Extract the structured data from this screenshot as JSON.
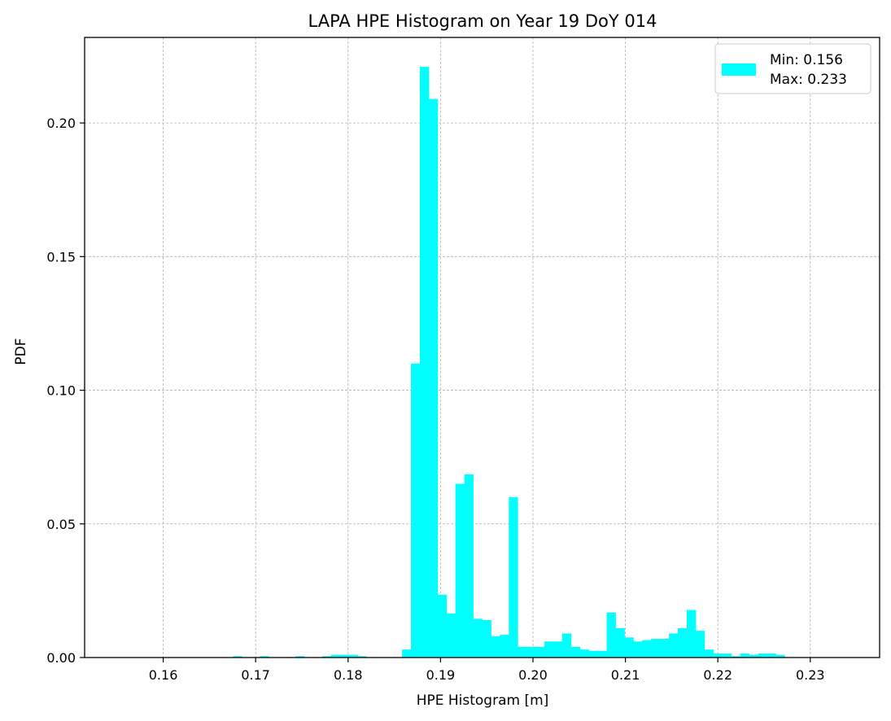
{
  "chart_data": {
    "type": "bar",
    "title": "LAPA HPE Histogram on Year 19 DoY 014",
    "xlabel": "HPE Histogram [m]",
    "ylabel": "PDF",
    "xlim": [
      0.1515,
      0.2375
    ],
    "ylim": [
      0,
      0.232
    ],
    "xticks": [
      "0.16",
      "0.17",
      "0.18",
      "0.19",
      "0.20",
      "0.21",
      "0.22",
      "0.23"
    ],
    "xtick_values": [
      0.16,
      0.17,
      0.18,
      0.19,
      0.2,
      0.21,
      0.22,
      0.23
    ],
    "yticks": [
      "0.00",
      "0.05",
      "0.10",
      "0.15",
      "0.20"
    ],
    "ytick_values": [
      0.0,
      0.05,
      0.1,
      0.15,
      0.2
    ],
    "grid": true,
    "legend_position": "top-right",
    "legend": [
      "Min: 0.156",
      "Max: 0.233"
    ],
    "bar_color": "#00ffff",
    "bin_min": 0.156,
    "bin_max": 0.233,
    "values": [
      0,
      0,
      0,
      0,
      0,
      0,
      0,
      0,
      0,
      0,
      0,
      0,
      0.0005,
      0,
      0,
      0.0005,
      0,
      0,
      0,
      0.0005,
      0,
      0,
      0.0005,
      0.001,
      0.001,
      0.001,
      0.0005,
      0,
      0,
      0,
      0,
      0.003,
      0.11,
      0.221,
      0.209,
      0.0235,
      0.0165,
      0.065,
      0.0685,
      0.0145,
      0.014,
      0.008,
      0.0085,
      0.06,
      0.004,
      0.004,
      0.004,
      0.006,
      0.006,
      0.009,
      0.004,
      0.003,
      0.0025,
      0.0025,
      0.0168,
      0.011,
      0.0075,
      0.006,
      0.0065,
      0.007,
      0.007,
      0.009,
      0.011,
      0.0178,
      0.01,
      0.003,
      0.0015,
      0.0015,
      0.0005,
      0.0015,
      0.001,
      0.0015,
      0.0015,
      0.001,
      0,
      0,
      0,
      0,
      0,
      0
    ]
  }
}
